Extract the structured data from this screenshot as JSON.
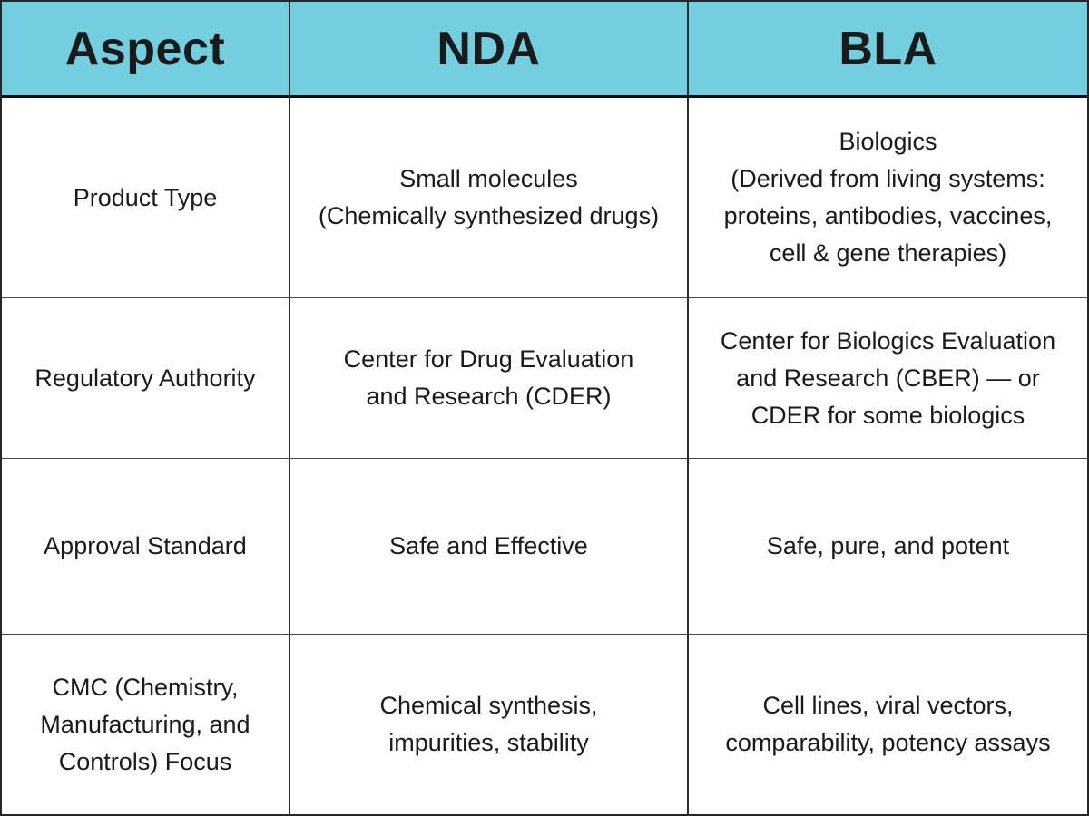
{
  "colors": {
    "header_bg": "#73CEE0",
    "cell_bg": "#ffffff",
    "text": "#1a1a1a",
    "outer_border": "#262626",
    "col_border": "#2d2d2d",
    "row_border": "#474747",
    "header_border": "#0d0d0d"
  },
  "header": {
    "cells": [
      "Aspect",
      "NDA",
      "BLA"
    ]
  },
  "rows": [
    {
      "cells": [
        "Product Type",
        "Small molecules\n(Chemically synthesized drugs)",
        "Biologics\n(Derived from living systems:\nproteins, antibodies, vaccines,\ncell & gene therapies)"
      ]
    },
    {
      "cells": [
        "Regulatory Authority",
        "Center for Drug Evaluation\nand Research (CDER)",
        "Center for Biologics Evaluation\nand Research (CBER) — or\nCDER for some biologics"
      ]
    },
    {
      "cells": [
        "Approval Standard",
        "Safe and Effective",
        "Safe, pure, and potent"
      ]
    },
    {
      "cells": [
        "CMC (Chemistry,\nManufacturing, and\nControls) Focus",
        "Chemical synthesis,\nimpurities, stability",
        "Cell lines, viral vectors,\ncomparability, potency assays"
      ]
    }
  ]
}
